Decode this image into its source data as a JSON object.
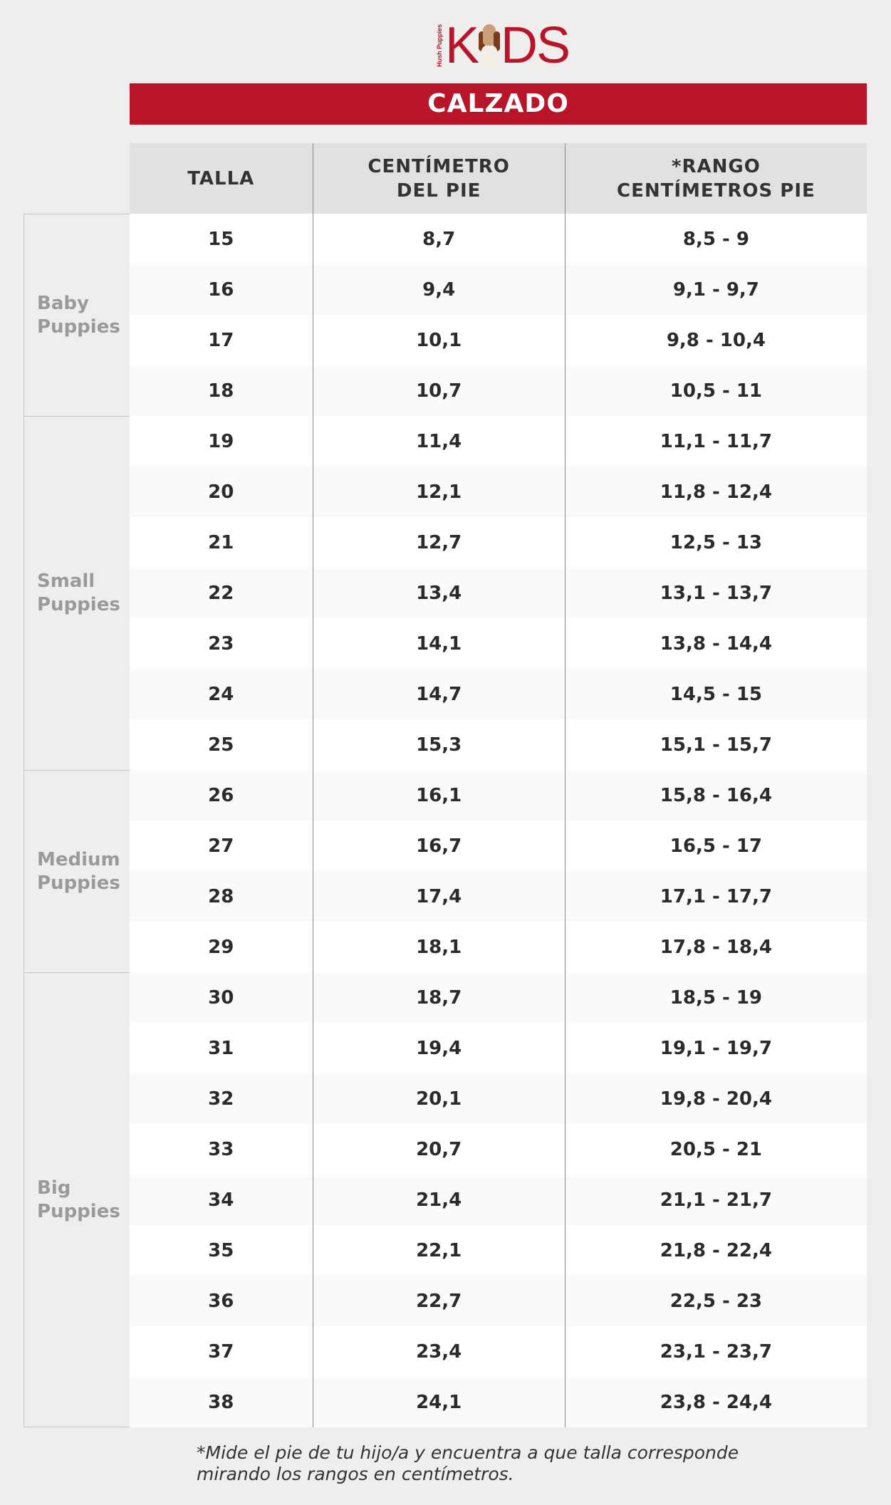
{
  "logo": {
    "brand": "Hush Puppies",
    "text_left": "K",
    "text_right": "DS",
    "full": "KIDS"
  },
  "banner": "CALZADO",
  "headers": {
    "talla": "TALLA",
    "cm_line1": "CENTÍMETRO",
    "cm_line2": "DEL PIE",
    "rango_line1": "*RANGO",
    "rango_line2": "CENTÍMETROS PIE"
  },
  "groups": [
    {
      "line1": "Baby",
      "line2": "Puppies",
      "rows": 4
    },
    {
      "line1": "Small",
      "line2": "Puppies",
      "rows": 7
    },
    {
      "line1": "Medium",
      "line2": "Puppies",
      "rows": 4
    },
    {
      "line1": "Big",
      "line2": "Puppies",
      "rows": 9
    }
  ],
  "rows": [
    [
      "15",
      "8,7",
      "8,5 - 9"
    ],
    [
      "16",
      "9,4",
      "9,1 - 9,7"
    ],
    [
      "17",
      "10,1",
      "9,8 - 10,4"
    ],
    [
      "18",
      "10,7",
      "10,5 - 11"
    ],
    [
      "19",
      "11,4",
      "11,1 - 11,7"
    ],
    [
      "20",
      "12,1",
      "11,8 - 12,4"
    ],
    [
      "21",
      "12,7",
      "12,5 - 13"
    ],
    [
      "22",
      "13,4",
      "13,1 - 13,7"
    ],
    [
      "23",
      "14,1",
      "13,8 - 14,4"
    ],
    [
      "24",
      "14,7",
      "14,5 - 15"
    ],
    [
      "25",
      "15,3",
      "15,1 - 15,7"
    ],
    [
      "26",
      "16,1",
      "15,8 - 16,4"
    ],
    [
      "27",
      "16,7",
      "16,5 - 17"
    ],
    [
      "28",
      "17,4",
      "17,1 - 17,7"
    ],
    [
      "29",
      "18,1",
      "17,8 - 18,4"
    ],
    [
      "30",
      "18,7",
      "18,5 - 19"
    ],
    [
      "31",
      "19,4",
      "19,1 - 19,7"
    ],
    [
      "32",
      "20,1",
      "19,8 - 20,4"
    ],
    [
      "33",
      "20,7",
      "20,5 - 21"
    ],
    [
      "34",
      "21,4",
      "21,1 - 21,7"
    ],
    [
      "35",
      "22,1",
      "21,8 - 22,4"
    ],
    [
      "36",
      "22,7",
      "22,5 - 23"
    ],
    [
      "37",
      "23,4",
      "23,1 - 23,7"
    ],
    [
      "38",
      "24,1",
      "23,8 - 24,4"
    ]
  ],
  "footnote": {
    "line1": "*Mide el pie de tu hijo/a y encuentra a que talla corresponde",
    "line2": "mirando los rangos en centímetros."
  },
  "colors": {
    "brand_red": "#b8142a",
    "header_bg": "#e3e1df",
    "page_bg": "#f0eeec"
  }
}
